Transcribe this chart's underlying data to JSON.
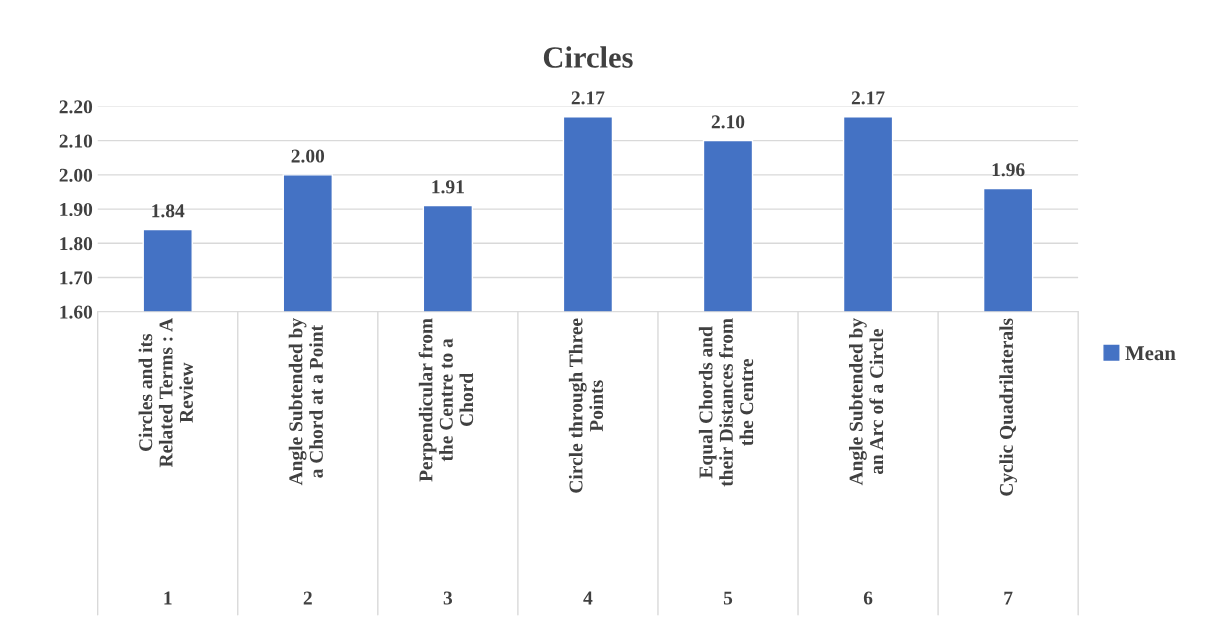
{
  "chart_data": {
    "type": "bar",
    "title": "Circles",
    "categories": [
      "Circles and its\nRelated Terms : A\nReview",
      "Angle Subtended by\na Chord at a Point",
      "Perpendicular from\nthe Centre to a\nChord",
      "Circle through Three\nPoints",
      "Equal Chords and\ntheir Distances from\nthe Centre",
      "Angle Subtended by\nan Arc of a Circle",
      "Cyclic Quadrilaterals"
    ],
    "series": [
      {
        "name": "Mean",
        "color": "#4472c4",
        "values": [
          1.84,
          2.0,
          1.91,
          2.17,
          2.1,
          2.17,
          1.96
        ],
        "value_labels": [
          "1.84",
          "2.00",
          "1.91",
          "2.17",
          "2.10",
          "2.17",
          "1.96"
        ]
      }
    ],
    "annotations": [
      "1",
      "2",
      "3",
      "4",
      "5",
      "6",
      "7"
    ],
    "ylim": [
      1.6,
      2.2
    ],
    "yticks": [
      {
        "value": 1.6,
        "label": "1.60"
      },
      {
        "value": 1.7,
        "label": "1.70"
      },
      {
        "value": 1.8,
        "label": "1.80"
      },
      {
        "value": 1.9,
        "label": "1.90"
      },
      {
        "value": 2.0,
        "label": "2.00"
      },
      {
        "value": 2.1,
        "label": "2.10"
      },
      {
        "value": 2.2,
        "label": "2.20"
      }
    ],
    "grid": "y",
    "legend": "right"
  }
}
